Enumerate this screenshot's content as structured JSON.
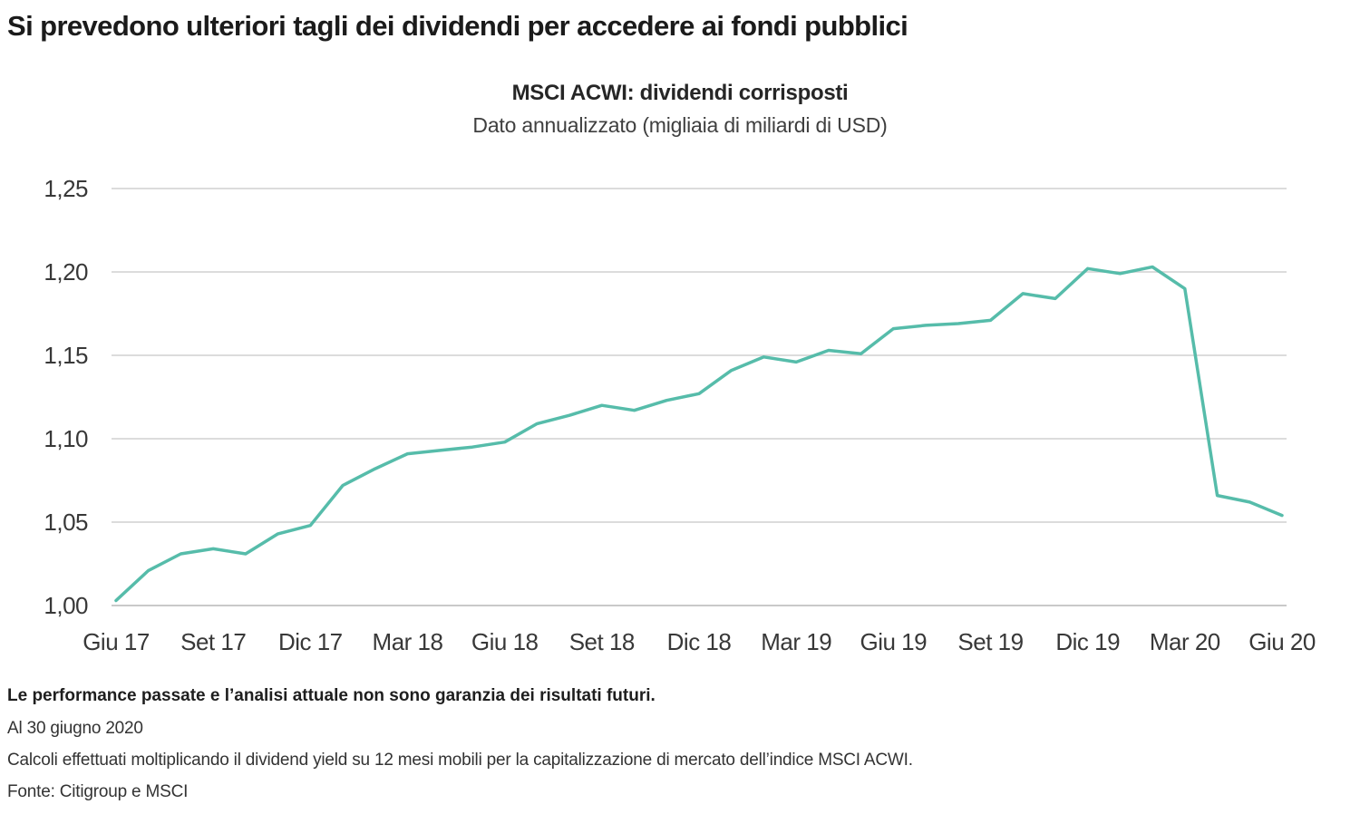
{
  "page": {
    "title": "Si prevedono ulteriori tagli dei dividendi per accedere ai fondi pubblici"
  },
  "chart_data": {
    "type": "line",
    "title": "MSCI ACWI: dividendi corrisposti",
    "subtitle": "Dato annualizzato (migliaia di miliardi di USD)",
    "xlabel": "",
    "ylabel": "",
    "ylim": [
      1.0,
      1.25
    ],
    "grid": true,
    "legend": false,
    "line_color": "#56bcaa",
    "grid_color": "#dcdcdc",
    "axis_line_color": "#c9c9c9",
    "x": [
      "Giu 17",
      "Lug 17",
      "Ago 17",
      "Set 17",
      "Ott 17",
      "Nov 17",
      "Dic 17",
      "Gen 18",
      "Feb 18",
      "Mar 18",
      "Apr 18",
      "Mag 18",
      "Giu 18",
      "Lug 18",
      "Ago 18",
      "Set 18",
      "Ott 18",
      "Nov 18",
      "Dic 18",
      "Gen 19",
      "Feb 19",
      "Mar 19",
      "Apr 19",
      "Mag 19",
      "Giu 19",
      "Lug 19",
      "Ago 19",
      "Set 19",
      "Ott 19",
      "Nov 19",
      "Dic 19",
      "Gen 20",
      "Feb 20",
      "Mar 20",
      "Apr 20",
      "Mag 20",
      "Giu 20"
    ],
    "values": [
      1.003,
      1.021,
      1.031,
      1.034,
      1.031,
      1.043,
      1.048,
      1.072,
      1.082,
      1.091,
      1.093,
      1.095,
      1.098,
      1.109,
      1.114,
      1.12,
      1.117,
      1.123,
      1.127,
      1.141,
      1.149,
      1.146,
      1.153,
      1.151,
      1.166,
      1.168,
      1.169,
      1.171,
      1.187,
      1.184,
      1.202,
      1.199,
      1.203,
      1.19,
      1.066,
      1.062,
      1.054
    ],
    "x_tick_labels": [
      "Giu 17",
      "Set 17",
      "Dic 17",
      "Mar 18",
      "Giu 18",
      "Set 18",
      "Dic 18",
      "Mar 19",
      "Giu 19",
      "Set 19",
      "Dic 19",
      "Mar 20",
      "Giu 20"
    ],
    "x_tick_step": 3,
    "y_ticks": [
      1.0,
      1.05,
      1.1,
      1.15,
      1.2,
      1.25
    ],
    "y_tick_labels": [
      "1,00",
      "1,05",
      "1,10",
      "1,15",
      "1,20",
      "1,25"
    ]
  },
  "footer": {
    "disclaimer": "Le performance passate e l’analisi attuale non sono garanzia dei risultati futuri.",
    "as_of": "Al 30 giugno 2020",
    "methodology": "Calcoli effettuati moltiplicando il dividend yield su 12 mesi mobili per la capitalizzazione di mercato dell’indice MSCI ACWI.",
    "source": "Fonte: Citigroup e MSCI"
  }
}
